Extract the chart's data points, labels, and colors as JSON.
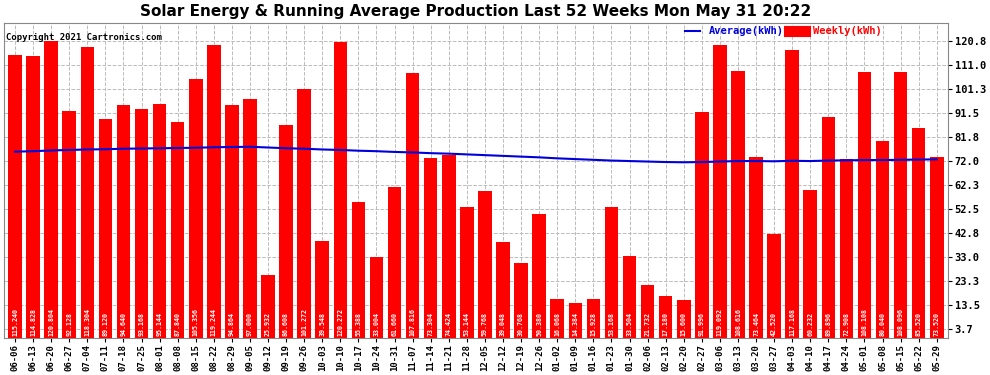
{
  "title": "Solar Energy & Running Average Production Last 52 Weeks Mon May 31 20:22",
  "copyright": "Copyright 2021 Cartronics.com",
  "legend_avg": "Average(kWh)",
  "legend_weekly": "Weekly(kWh)",
  "bar_color": "#ff0000",
  "avg_line_color": "#0000dd",
  "background_color": "#ffffff",
  "grid_color": "#bbbbbb",
  "label_color": "#ffffff",
  "yticks": [
    3.7,
    13.5,
    23.3,
    33.0,
    42.8,
    52.5,
    62.3,
    72.0,
    81.8,
    91.5,
    101.3,
    111.0,
    120.8
  ],
  "categories": [
    "06-06",
    "06-13",
    "06-20",
    "06-27",
    "07-04",
    "07-11",
    "07-18",
    "07-25",
    "08-01",
    "08-08",
    "08-15",
    "08-22",
    "08-29",
    "09-05",
    "09-12",
    "09-19",
    "09-26",
    "10-03",
    "10-10",
    "10-17",
    "10-24",
    "10-31",
    "11-07",
    "11-14",
    "11-21",
    "11-28",
    "12-05",
    "12-12",
    "12-19",
    "12-26",
    "01-02",
    "01-09",
    "01-16",
    "01-23",
    "01-30",
    "02-06",
    "02-13",
    "02-20",
    "02-27",
    "03-06",
    "03-13",
    "03-20",
    "03-27",
    "04-03",
    "04-10",
    "04-17",
    "04-24",
    "05-01",
    "05-08",
    "05-15",
    "05-22",
    "05-29"
  ],
  "weekly_values": [
    115.24,
    114.828,
    120.804,
    92.128,
    118.304,
    89.12,
    94.64,
    93.168,
    95.144,
    87.84,
    105.356,
    119.244,
    94.864,
    97.0,
    25.932,
    86.608,
    101.272,
    39.548,
    120.272,
    55.388,
    33.004,
    61.66,
    107.816,
    73.304,
    74.424,
    53.144,
    59.768,
    39.048,
    30.768,
    50.38,
    16.068,
    14.384,
    15.928,
    53.168,
    33.504,
    21.732,
    17.18,
    15.6,
    91.996,
    119.092,
    108.616,
    73.464,
    42.52,
    117.168,
    60.232,
    89.896,
    72.908,
    108.108,
    80.04,
    108.096,
    85.52,
    73.52
  ],
  "avg_values": [
    75.8,
    76.0,
    76.3,
    76.5,
    76.7,
    76.8,
    77.0,
    77.1,
    77.2,
    77.3,
    77.4,
    77.6,
    77.7,
    77.8,
    77.5,
    77.2,
    77.0,
    76.7,
    76.5,
    76.2,
    76.0,
    75.7,
    75.5,
    75.2,
    75.0,
    74.7,
    74.4,
    74.1,
    73.8,
    73.5,
    73.1,
    72.8,
    72.5,
    72.2,
    72.0,
    71.8,
    71.6,
    71.5,
    71.6,
    71.8,
    72.0,
    72.0,
    71.9,
    72.1,
    72.0,
    72.2,
    72.3,
    72.4,
    72.4,
    72.5,
    72.6,
    72.7
  ],
  "ylim_min": 0,
  "ylim_max": 128,
  "bar_width": 0.75,
  "figwidth": 9.9,
  "figheight": 3.75,
  "dpi": 100
}
